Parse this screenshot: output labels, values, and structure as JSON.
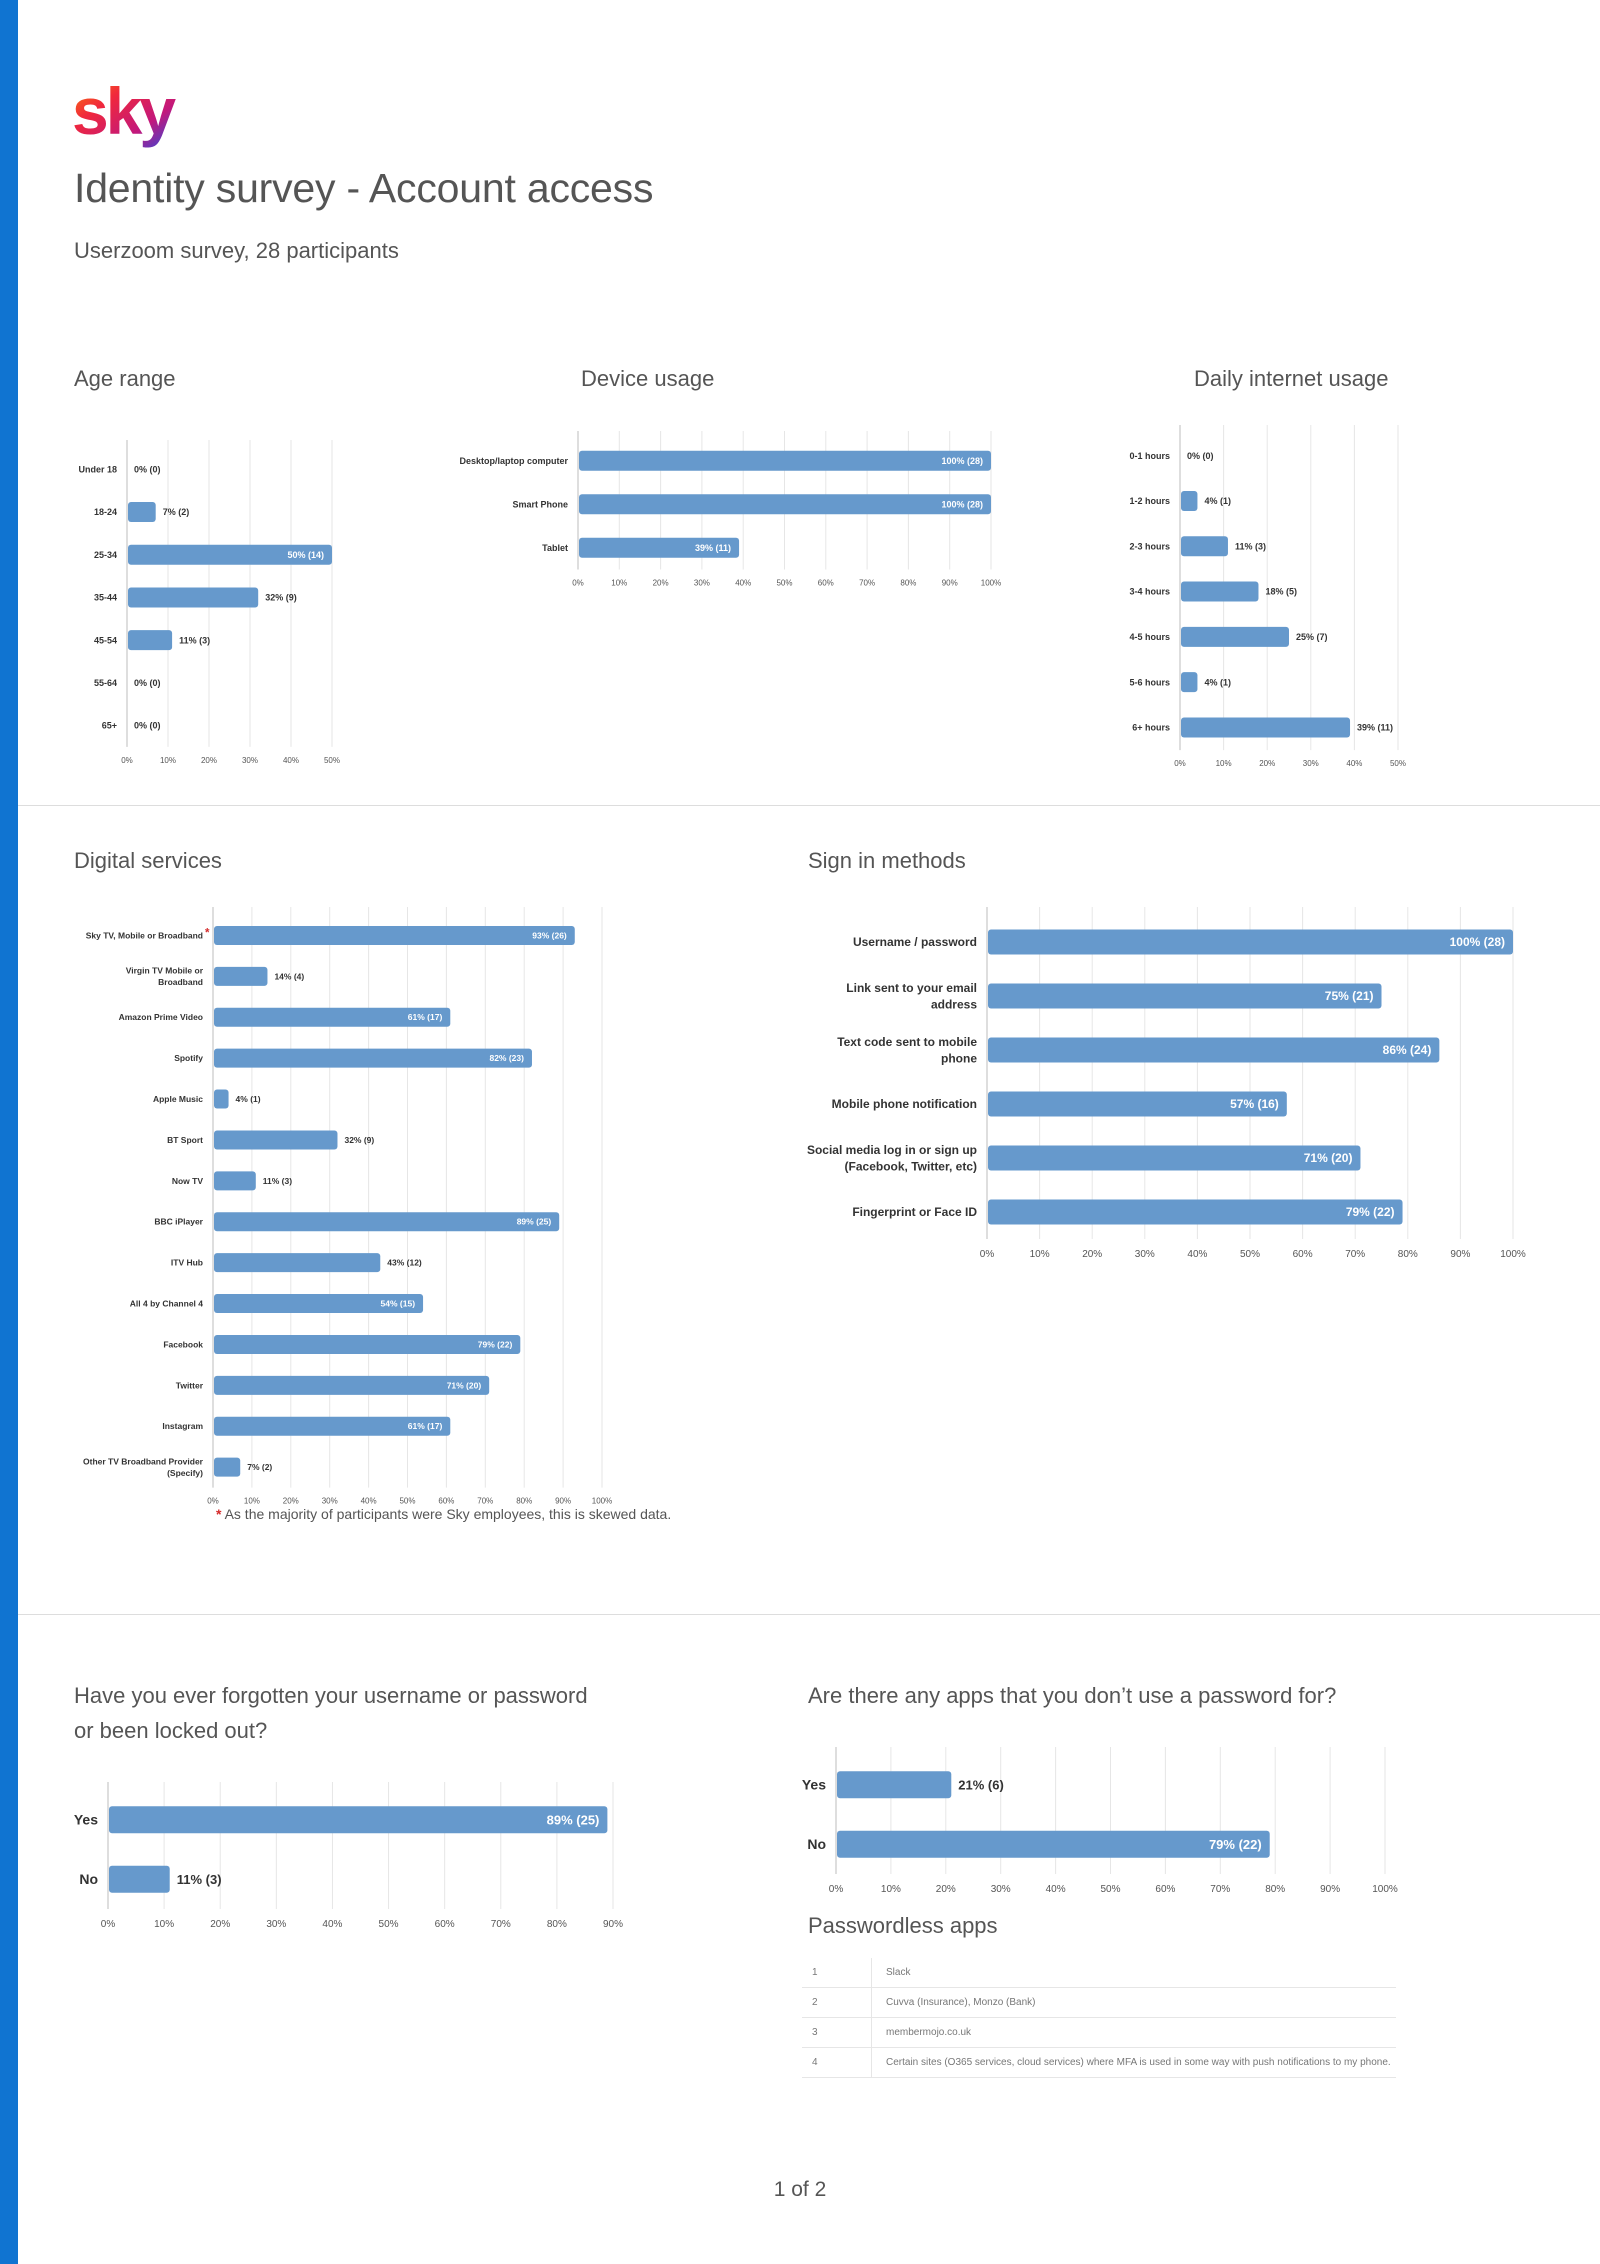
{
  "header": {
    "logo_text": "sky",
    "title": "Identity survey - Account access",
    "subtitle": "Userzoom survey, 28 participants"
  },
  "colors": {
    "stripe": "#1074d1",
    "bar": "#6699cc"
  },
  "footnote": {
    "star": "*",
    "text": "As the majority of participants were Sky employees, this is skewed data."
  },
  "passwordless": {
    "title": "Passwordless apps",
    "rows": [
      {
        "num": "1",
        "app": "Slack"
      },
      {
        "num": "2",
        "app": "Cuvva (Insurance), Monzo (Bank)"
      },
      {
        "num": "3",
        "app": "membermojo.co.uk"
      },
      {
        "num": "4",
        "app": "Certain sites (O365 services, cloud services) where MFA is used in some way with push notifications to my phone."
      }
    ]
  },
  "page_number": "1 of 2",
  "chart_data": [
    {
      "id": "age",
      "type": "bar",
      "title": "Age range",
      "categories": [
        "Under 18",
        "18-24",
        "25-34",
        "35-44",
        "45-54",
        "55-64",
        "65+"
      ],
      "values": [
        0,
        7,
        50,
        32,
        11,
        0,
        0
      ],
      "labels": [
        "0% (0)",
        "7% (2)",
        "50% (14)",
        "32% (9)",
        "11% (3)",
        "0% (0)",
        "0% (0)"
      ],
      "xlim": [
        0,
        50
      ],
      "ticks": [
        0,
        10,
        20,
        30,
        40,
        50
      ],
      "tick_labels": [
        "0%",
        "10%",
        "20%",
        "30%",
        "40%",
        "50%"
      ],
      "asterisk_index": -1
    },
    {
      "id": "device",
      "type": "bar",
      "title": "Device usage",
      "categories": [
        "Desktop/laptop computer",
        "Smart Phone",
        "Tablet"
      ],
      "values": [
        100,
        100,
        39
      ],
      "labels": [
        "100% (28)",
        "100% (28)",
        "39% (11)"
      ],
      "xlim": [
        0,
        100
      ],
      "ticks": [
        0,
        10,
        20,
        30,
        40,
        50,
        60,
        70,
        80,
        90,
        100
      ],
      "tick_labels": [
        "0%",
        "10%",
        "20%",
        "30%",
        "40%",
        "50%",
        "60%",
        "70%",
        "80%",
        "90%",
        "100%"
      ],
      "asterisk_index": -1
    },
    {
      "id": "internet",
      "type": "bar",
      "title": "Daily internet usage",
      "categories": [
        "0-1 hours",
        "1-2 hours",
        "2-3 hours",
        "3-4 hours",
        "4-5 hours",
        "5-6 hours",
        "6+ hours"
      ],
      "values": [
        0,
        4,
        11,
        18,
        25,
        4,
        39
      ],
      "labels": [
        "0% (0)",
        "4% (1)",
        "11% (3)",
        "18% (5)",
        "25% (7)",
        "4% (1)",
        "39% (11)"
      ],
      "xlim": [
        0,
        50
      ],
      "ticks": [
        0,
        10,
        20,
        30,
        40,
        50
      ],
      "tick_labels": [
        "0%",
        "10%",
        "20%",
        "30%",
        "40%",
        "50%"
      ],
      "asterisk_index": -1
    },
    {
      "id": "digital",
      "type": "bar",
      "title": "Digital services",
      "categories": [
        "Sky TV, Mobile or Broadband",
        "Virgin TV Mobile or\nBroadband",
        "Amazon Prime Video",
        "Spotify",
        "Apple Music",
        "BT Sport",
        "Now TV",
        "BBC iPlayer",
        "ITV Hub",
        "All 4 by Channel 4",
        "Facebook",
        "Twitter",
        "Instagram",
        "Other TV Broadband Provider\n(Specify)"
      ],
      "values": [
        93,
        14,
        61,
        82,
        4,
        32,
        11,
        89,
        43,
        54,
        79,
        71,
        61,
        7
      ],
      "labels": [
        "93% (26)",
        "14% (4)",
        "61% (17)",
        "82% (23)",
        "4% (1)",
        "32% (9)",
        "11% (3)",
        "89% (25)",
        "43% (12)",
        "54% (15)",
        "79% (22)",
        "71% (20)",
        "61% (17)",
        "7% (2)"
      ],
      "xlim": [
        0,
        100
      ],
      "ticks": [
        0,
        10,
        20,
        30,
        40,
        50,
        60,
        70,
        80,
        90,
        100
      ],
      "tick_labels": [
        "0%",
        "10%",
        "20%",
        "30%",
        "40%",
        "50%",
        "60%",
        "70%",
        "80%",
        "90%",
        "100%"
      ],
      "asterisk_index": 0
    },
    {
      "id": "signin",
      "type": "bar",
      "title": "Sign in methods",
      "categories": [
        "Username / password",
        "Link sent to your email\naddress",
        "Text code sent to mobile\nphone",
        "Mobile phone notification",
        "Social media log in or sign up\n(Facebook, Twitter, etc)",
        "Fingerprint or Face ID"
      ],
      "values": [
        100,
        75,
        86,
        57,
        71,
        79
      ],
      "labels": [
        "100% (28)",
        "75% (21)",
        "86% (24)",
        "57% (16)",
        "71% (20)",
        "79% (22)"
      ],
      "xlim": [
        0,
        100
      ],
      "ticks": [
        0,
        10,
        20,
        30,
        40,
        50,
        60,
        70,
        80,
        90,
        100
      ],
      "tick_labels": [
        "0%",
        "10%",
        "20%",
        "30%",
        "40%",
        "50%",
        "60%",
        "70%",
        "80%",
        "90%",
        "100%"
      ],
      "asterisk_index": -1
    },
    {
      "id": "forgot",
      "type": "bar",
      "title": "Have you ever forgotten your username or password\nor been locked out?",
      "categories": [
        "Yes",
        "No"
      ],
      "values": [
        89,
        11
      ],
      "labels": [
        "89% (25)",
        "11% (3)"
      ],
      "xlim": [
        0,
        90
      ],
      "ticks": [
        0,
        10,
        20,
        30,
        40,
        50,
        60,
        70,
        80,
        90
      ],
      "tick_labels": [
        "0%",
        "10%",
        "20%",
        "30%",
        "40%",
        "50%",
        "60%",
        "70%",
        "80%",
        "90%"
      ],
      "asterisk_index": -1
    },
    {
      "id": "apps",
      "type": "bar",
      "title": "Are there any apps that you don’t use a password for?",
      "categories": [
        "Yes",
        "No"
      ],
      "values": [
        21,
        79
      ],
      "labels": [
        "21% (6)",
        "79% (22)"
      ],
      "xlim": [
        0,
        100
      ],
      "ticks": [
        0,
        10,
        20,
        30,
        40,
        50,
        60,
        70,
        80,
        90,
        100
      ],
      "tick_labels": [
        "0%",
        "10%",
        "20%",
        "30%",
        "40%",
        "50%",
        "60%",
        "70%",
        "80%",
        "90%",
        "100%"
      ],
      "asterisk_index": -1
    }
  ]
}
